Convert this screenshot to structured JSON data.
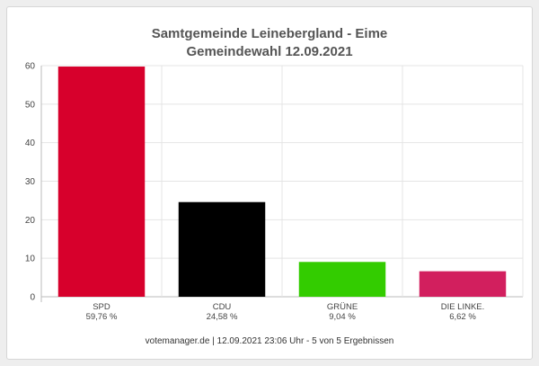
{
  "chart_data": {
    "type": "bar",
    "title": "Samtgemeinde Leinebergland - Eime",
    "subtitle": "Gemeindewahl 12.09.2021",
    "categories": [
      "SPD",
      "CDU",
      "GRÜNE",
      "DIE LINKE."
    ],
    "values": [
      59.76,
      24.58,
      9.04,
      6.62
    ],
    "value_labels": [
      "59,76 %",
      "24,58 %",
      "9,04 %",
      "6,62 %"
    ],
    "colors": [
      "#d7002c",
      "#000000",
      "#33cc00",
      "#d21f5e"
    ],
    "ylim": [
      0,
      60
    ],
    "yticks": [
      0,
      10,
      20,
      30,
      40,
      50,
      60
    ],
    "grid": true,
    "xlabel": "",
    "ylabel": ""
  },
  "footer": "votemanager.de | 12.09.2021 23:06 Uhr - 5 von 5 Ergebnissen"
}
